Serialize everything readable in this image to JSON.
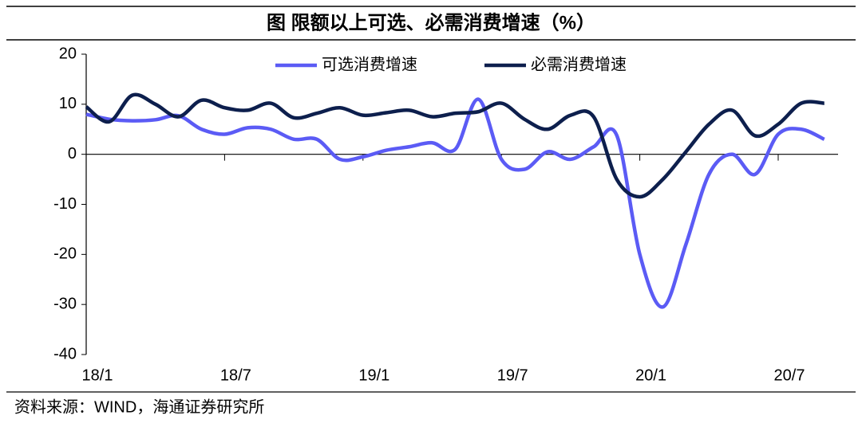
{
  "chart_data": {
    "type": "line",
    "title": "图 限额以上可选、必需消费增速（%）",
    "source": "资料来源：WIND，海通证券研究所",
    "categories": [
      "18/1",
      null,
      null,
      null,
      null,
      null,
      "18/7",
      null,
      null,
      null,
      null,
      null,
      "19/1",
      null,
      null,
      null,
      null,
      null,
      "19/7",
      null,
      null,
      null,
      null,
      null,
      "20/1",
      null,
      null,
      null,
      null,
      null,
      "20/7",
      null,
      null
    ],
    "series": [
      {
        "name": "可选消费增速",
        "color": "#5b5bf5",
        "values": [
          8,
          7,
          6.7,
          6.9,
          7.7,
          5,
          4,
          5.3,
          5,
          3,
          3,
          -1,
          -0.5,
          0.8,
          1.5,
          2.3,
          1,
          11,
          -1,
          -3,
          0.5,
          -1,
          1.5,
          3.8,
          -20,
          -30.5,
          -18,
          -4,
          0,
          -4,
          4,
          5,
          3
        ]
      },
      {
        "name": "必需消费增速",
        "color": "#0d1f4d",
        "values": [
          9.5,
          6.5,
          11.8,
          10,
          7.5,
          10.8,
          9.3,
          8.8,
          10.2,
          7.3,
          8.2,
          9.3,
          7.8,
          8.3,
          8.8,
          7.5,
          8.2,
          8.5,
          10.2,
          7,
          5,
          7.8,
          7.5,
          -5,
          -8.5,
          -5,
          0.5,
          6,
          8.8,
          3.7,
          6,
          10.2,
          10.2
        ]
      }
    ],
    "ylim": [
      -40,
      20
    ],
    "yticks": [
      -40,
      -30,
      -20,
      -10,
      0,
      10,
      20
    ],
    "legend": "top"
  }
}
